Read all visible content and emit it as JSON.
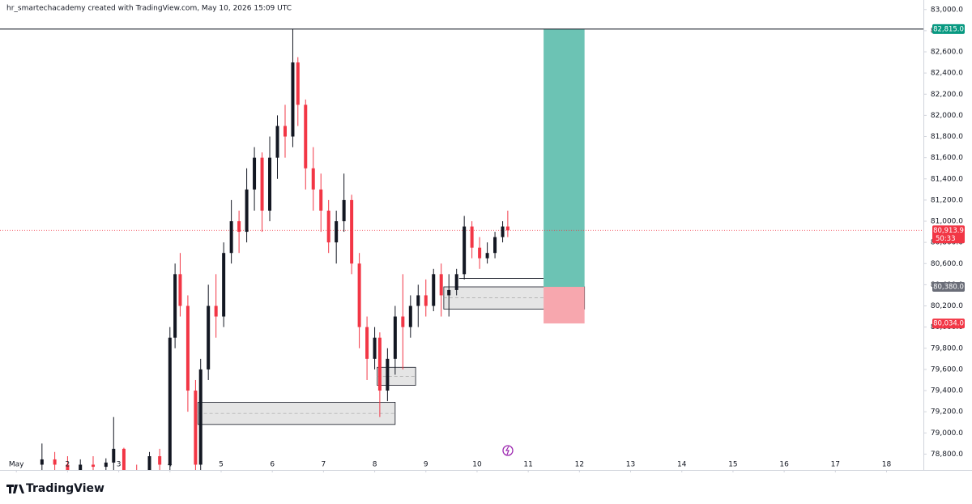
{
  "header": "hr_smartechacademy created with TradingView.com, May 10, 2026 15:09 UTC",
  "brand": "TradingView",
  "chart_data": {
    "type": "candlestick",
    "up_color": "#131722",
    "down_color": "#f23645",
    "xlim": [
      0.68,
      18.72
    ],
    "ylim": [
      78650,
      83090
    ],
    "xticks": [
      {
        "value": 1,
        "label": "May"
      },
      2,
      3,
      4,
      5,
      6,
      7,
      8,
      9,
      10,
      11,
      12,
      13,
      14,
      15,
      16,
      17,
      18
    ],
    "yticks": [
      {
        "value": 78800,
        "label": "78,800.0"
      },
      {
        "value": 79000,
        "label": "79,000.0"
      },
      {
        "value": 79200,
        "label": "79,200.0"
      },
      {
        "value": 79400,
        "label": "79,400.0"
      },
      {
        "value": 79600,
        "label": "79,600.0"
      },
      {
        "value": 79800,
        "label": "79,800.0"
      },
      {
        "value": 80000,
        "label": "80,000.0"
      },
      {
        "value": 80200,
        "label": "80,200.0"
      },
      {
        "value": 80400,
        "label": "80,400.0"
      },
      {
        "value": 80600,
        "label": "80,600.0"
      },
      {
        "value": 80800,
        "label": "80,800.0"
      },
      {
        "value": 81000,
        "label": "81,000.0"
      },
      {
        "value": 81200,
        "label": "81,200.0"
      },
      {
        "value": 81400,
        "label": "81,400.0"
      },
      {
        "value": 81600,
        "label": "81,600.0"
      },
      {
        "value": 81800,
        "label": "81,800.0"
      },
      {
        "value": 82000,
        "label": "82,000.0"
      },
      {
        "value": 82200,
        "label": "82,200.0"
      },
      {
        "value": 82400,
        "label": "82,400.0"
      },
      {
        "value": 82600,
        "label": "82,600.0"
      },
      {
        "value": 82800,
        "label": "82,800.0"
      },
      {
        "value": 83000,
        "label": "83,000.0"
      }
    ],
    "x": [
      1.5,
      1.75,
      2.0,
      2.25,
      2.5,
      2.75,
      2.9,
      3.1,
      3.35,
      3.6,
      3.8,
      4.0,
      4.1,
      4.2,
      4.35,
      4.5,
      4.6,
      4.75,
      4.9,
      5.05,
      5.2,
      5.35,
      5.5,
      5.65,
      5.8,
      5.95,
      6.1,
      6.25,
      6.4,
      6.5,
      6.65,
      6.8,
      6.95,
      7.1,
      7.25,
      7.4,
      7.55,
      7.7,
      7.85,
      8.0,
      8.1,
      8.25,
      8.4,
      8.55,
      8.7,
      8.85,
      9.0,
      9.15,
      9.3,
      9.45,
      9.6,
      9.75,
      9.9,
      10.05,
      10.2,
      10.35,
      10.5,
      10.6
    ],
    "open": [
      78700,
      78750,
      78700,
      78650,
      78700,
      78680,
      78720,
      78850,
      78650,
      78600,
      78780,
      78700,
      79900,
      80500,
      80200,
      79400,
      78700,
      79600,
      80200,
      80100,
      80700,
      81000,
      80900,
      81300,
      81600,
      81100,
      81600,
      81900,
      81800,
      82500,
      82100,
      81500,
      81300,
      81100,
      80800,
      81000,
      81200,
      80600,
      80000,
      79700,
      79900,
      79400,
      79700,
      80100,
      80000,
      80200,
      80300,
      80200,
      80500,
      80300,
      80350,
      80500,
      80950,
      80750,
      80650,
      80700,
      80850,
      80950
    ],
    "high": [
      78900,
      78820,
      78780,
      78750,
      78780,
      78760,
      79150,
      78860,
      78700,
      78820,
      78850,
      80000,
      80600,
      80700,
      80300,
      79500,
      79700,
      80400,
      80500,
      80800,
      81200,
      81100,
      81500,
      81700,
      81650,
      81800,
      82000,
      82100,
      82815,
      82550,
      82150,
      81700,
      81450,
      81200,
      81100,
      81450,
      81250,
      80700,
      80100,
      80000,
      79950,
      79800,
      80200,
      80500,
      80300,
      80400,
      80450,
      80550,
      80600,
      80500,
      80550,
      81050,
      81000,
      80850,
      80800,
      80900,
      81000,
      81100
    ],
    "low": [
      78600,
      78650,
      78600,
      78550,
      78600,
      78600,
      78650,
      78600,
      78550,
      78580,
      78600,
      78650,
      79800,
      80100,
      79200,
      78600,
      78650,
      79500,
      79900,
      80000,
      80600,
      80700,
      80800,
      81100,
      80900,
      81000,
      81400,
      81600,
      81700,
      81900,
      81300,
      81100,
      80900,
      80700,
      80600,
      80900,
      80500,
      79800,
      79500,
      79600,
      79150,
      79300,
      79550,
      79600,
      79900,
      80000,
      80100,
      80150,
      80100,
      80100,
      80300,
      80450,
      80650,
      80550,
      80600,
      80650,
      80800,
      80850
    ],
    "close": [
      78750,
      78700,
      78650,
      78700,
      78680,
      78720,
      78850,
      78650,
      78600,
      78780,
      78700,
      79900,
      80500,
      80200,
      79400,
      78700,
      79600,
      80200,
      80100,
      80700,
      81000,
      80900,
      81300,
      81600,
      81100,
      81600,
      81900,
      81800,
      82500,
      82100,
      81500,
      81300,
      81100,
      80800,
      81000,
      81200,
      80600,
      80000,
      79700,
      79900,
      79400,
      79700,
      80100,
      80000,
      80200,
      80300,
      80200,
      80500,
      80300,
      80350,
      80500,
      80950,
      80750,
      80650,
      80700,
      80850,
      80950,
      80913.9
    ],
    "last_price": {
      "value": 80913.9,
      "label": "80,913.9",
      "countdown": "50:33",
      "color": "#f23645"
    },
    "position": {
      "x": [
        11.3,
        12.1
      ],
      "target_color": "#6cc3b4",
      "stop_color": "#f7a7ae",
      "target": {
        "value": 82815,
        "label": "82,815.0",
        "color": "#089981"
      },
      "entry": {
        "value": 80380,
        "label": "80,380.0",
        "color": "#6a6d78"
      },
      "stop": {
        "value": 80034,
        "label": "80,034.0",
        "color": "#f23645"
      }
    },
    "zones": [
      {
        "x": [
          4.55,
          8.4
        ],
        "y": [
          79080,
          79290
        ]
      },
      {
        "x": [
          8.05,
          8.8
        ],
        "y": [
          79450,
          79620
        ]
      },
      {
        "x": [
          9.35,
          12.1
        ],
        "y": [
          80170,
          80380
        ]
      }
    ],
    "segments": [
      {
        "x": [
          9.65,
          11.3
        ],
        "y": 80460
      }
    ]
  }
}
